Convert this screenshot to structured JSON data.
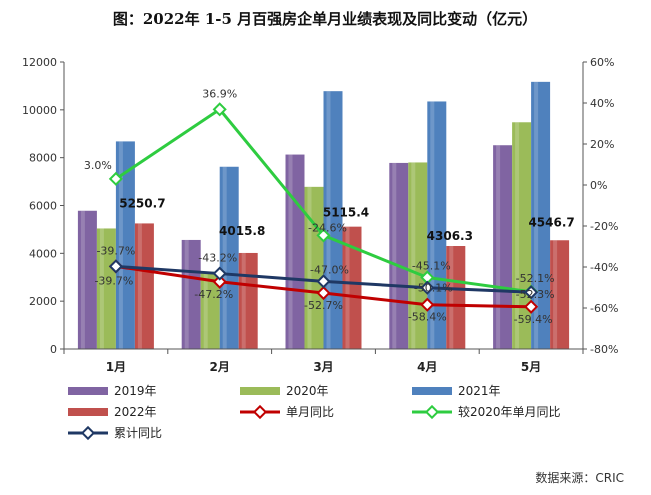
{
  "chart_data": {
    "type": "bar",
    "title": "图：2022年 1-5 月百强房企单月业绩表现及同比变动（亿元）",
    "categories": [
      "1月",
      "2月",
      "3月",
      "4月",
      "5月"
    ],
    "ylim": [
      0,
      12000
    ],
    "yticks": [
      "0",
      "2000",
      "4000",
      "6000",
      "8000",
      "10000",
      "12000"
    ],
    "y2lim": [
      -80,
      60
    ],
    "y2ticks": [
      "-80%",
      "-60%",
      "-40%",
      "-20%",
      "0%",
      "20%",
      "40%",
      "60%"
    ],
    "series": [
      {
        "name": "2019年",
        "kind": "bar",
        "color": "#8064a2",
        "values": [
          5780,
          4560,
          8130,
          7780,
          8520
        ]
      },
      {
        "name": "2020年",
        "kind": "bar",
        "color": "#9bbb59",
        "values": [
          5040,
          3230,
          6780,
          7800,
          9480
        ]
      },
      {
        "name": "2021年",
        "kind": "bar",
        "color": "#4f81bd",
        "values": [
          8680,
          7620,
          10780,
          10350,
          11170
        ]
      },
      {
        "name": "2022年",
        "kind": "bar",
        "color": "#c0504d",
        "values": [
          5250.7,
          4015.8,
          5115.4,
          4306.3,
          4546.7
        ],
        "labels": [
          "5250.7",
          "4015.8",
          "5115.4",
          "4306.3",
          "4546.7"
        ]
      },
      {
        "name": "单月同比",
        "kind": "line",
        "axis": "right",
        "color": "#c00000",
        "values": [
          -39.7,
          -47.2,
          -52.7,
          -58.4,
          -59.4
        ],
        "labels": [
          "-39.7%",
          "-47.2%",
          "-52.7%",
          "-58.4%",
          "-59.4%"
        ]
      },
      {
        "name": "较2020年单月同比",
        "kind": "line",
        "axis": "right",
        "color": "#2ecc40",
        "values": [
          3.0,
          36.9,
          -24.6,
          -45.1,
          -52.1
        ],
        "labels": [
          "3.0%",
          "36.9%",
          "-24.6%",
          "-45.1%",
          "-52.1%"
        ]
      },
      {
        "name": "累计同比",
        "kind": "line",
        "axis": "right",
        "color": "#1f3864",
        "values": [
          -39.7,
          -43.2,
          -47.0,
          -50.1,
          -52.3
        ],
        "labels": [
          "-39.7%",
          "-43.2%",
          "-47.0%",
          "-50.1%",
          "-52.3%"
        ]
      }
    ],
    "legend": [
      {
        "name": "2019年",
        "marker": "bar",
        "color": "#8064a2"
      },
      {
        "name": "2020年",
        "marker": "bar",
        "color": "#9bbb59"
      },
      {
        "name": "2021年",
        "marker": "bar",
        "color": "#4f81bd"
      },
      {
        "name": "2022年",
        "marker": "bar",
        "color": "#c0504d"
      },
      {
        "name": "单月同比",
        "marker": "line",
        "color": "#c00000"
      },
      {
        "name": "较2020年单月同比",
        "marker": "line",
        "color": "#2ecc40"
      },
      {
        "name": "累计同比",
        "marker": "line",
        "color": "#1f3864"
      }
    ],
    "source": "数据来源：CRIC"
  }
}
